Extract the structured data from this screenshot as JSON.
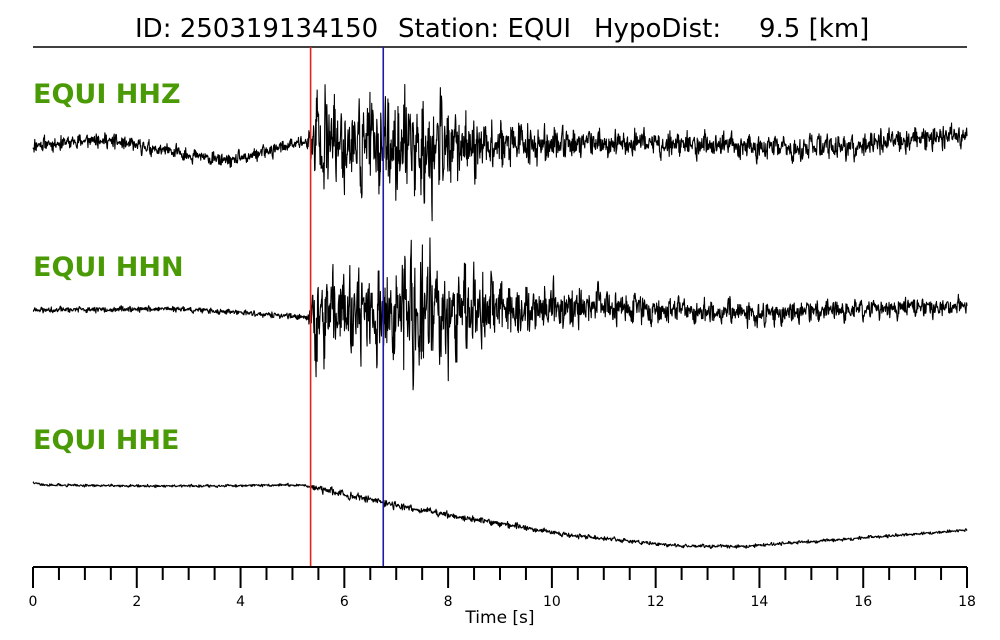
{
  "header": {
    "id_text": "ID: 250319134150",
    "station_text": "Station: EQUI",
    "hypodist_label": "HypoDist:",
    "hypodist_value": "9.5 [km]"
  },
  "colors": {
    "label": "#4a9a06",
    "trace": "#000000",
    "p_pick": "#e8221b",
    "s_pick": "#1c1ca8"
  },
  "chart_data": {
    "type": "line",
    "xlabel": "Time [s]",
    "xlim": [
      0,
      18
    ],
    "major_ticks": [
      0,
      2,
      4,
      6,
      8,
      10,
      12,
      14,
      16,
      18
    ],
    "minor_tick_step": 0.5,
    "picks": [
      {
        "name": "P",
        "time": 5.35
      },
      {
        "name": "S",
        "time": 6.75
      }
    ],
    "series": [
      {
        "name": "EQUI HHZ",
        "envelope": [
          [
            0,
            0.12
          ],
          [
            5.3,
            0.12
          ],
          [
            5.45,
            1.0
          ],
          [
            6.0,
            0.7
          ],
          [
            7.0,
            0.9
          ],
          [
            7.6,
            0.95
          ],
          [
            8.4,
            0.55
          ],
          [
            9.5,
            0.35
          ],
          [
            11,
            0.22
          ],
          [
            18,
            0.2
          ]
        ],
        "trend": [
          [
            0,
            0
          ],
          [
            1.3,
            0.1
          ],
          [
            2.5,
            -0.1
          ],
          [
            3.8,
            -0.3
          ],
          [
            5.2,
            0.05
          ],
          [
            8,
            0
          ],
          [
            12,
            0.03
          ],
          [
            15,
            -0.08
          ],
          [
            18,
            0.18
          ]
        ]
      },
      {
        "name": "EQUI HHN",
        "envelope": [
          [
            0,
            0.04
          ],
          [
            5.3,
            0.04
          ],
          [
            5.4,
            0.6
          ],
          [
            6.5,
            0.55
          ],
          [
            7.3,
            0.9
          ],
          [
            7.6,
            1.0
          ],
          [
            8.2,
            0.6
          ],
          [
            9.0,
            0.4
          ],
          [
            10.5,
            0.28
          ],
          [
            12,
            0.18
          ],
          [
            18,
            0.12
          ]
        ],
        "trend": [
          [
            0,
            0
          ],
          [
            2.8,
            0.02
          ],
          [
            5.2,
            -0.1
          ],
          [
            10.6,
            0.05
          ],
          [
            14,
            -0.05
          ],
          [
            18,
            0.08
          ]
        ]
      },
      {
        "name": "EQUI HHE",
        "envelope": [
          [
            0,
            0.02
          ],
          [
            5.3,
            0.02
          ],
          [
            5.5,
            0.06
          ],
          [
            8.0,
            0.05
          ],
          [
            12,
            0.03
          ],
          [
            18,
            0.02
          ]
        ],
        "trend": [
          [
            0,
            0.55
          ],
          [
            0.2,
            0.5
          ],
          [
            2.5,
            0.48
          ],
          [
            5.2,
            0.5
          ],
          [
            6.2,
            0.3
          ],
          [
            8.0,
            0.0
          ],
          [
            10.5,
            -0.35
          ],
          [
            12.5,
            -0.52
          ],
          [
            13.7,
            -0.52
          ],
          [
            16.5,
            -0.35
          ],
          [
            18,
            -0.25
          ]
        ]
      }
    ]
  }
}
